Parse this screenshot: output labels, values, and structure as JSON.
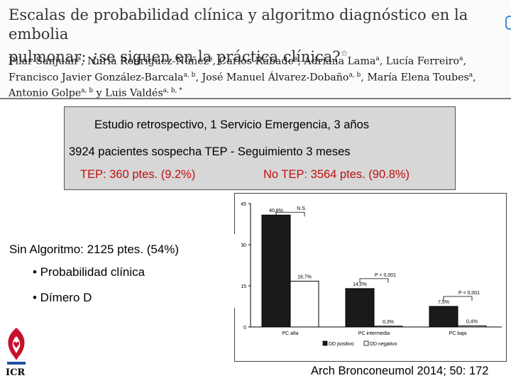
{
  "header": {
    "title_line1": "Escalas de probabilidad clínica y algoritmo diagnóstico en la embolia",
    "title_line2": "pulmonar: ¿se siguen en la práctica clínica?",
    "title_mark": "☆",
    "authors": [
      [
        {
          "name": "Pilar Sanjuán",
          "sup": "a"
        },
        {
          "name": ", Nuria Rodríguez-Núñez",
          "sup": "a"
        },
        {
          "name": ", Carlos Rábade",
          "sup": "a"
        },
        {
          "name": ", Adriana Lama",
          "sup": "a"
        },
        {
          "name": ", Lucía Ferreiro",
          "sup": "a"
        },
        {
          "name": ",",
          "sup": ""
        }
      ],
      [
        {
          "name": "Francisco Javier González-Barcala",
          "sup": "a, b"
        },
        {
          "name": ", José Manuel Álvarez-Dobaño",
          "sup": "a, b"
        },
        {
          "name": ", María Elena Toubes",
          "sup": "a"
        },
        {
          "name": ",",
          "sup": ""
        }
      ],
      [
        {
          "name": "Antonio Golpe",
          "sup": "a, b"
        },
        {
          "name": " y Luis Valdés",
          "sup": "a, b, *"
        }
      ]
    ]
  },
  "summary": {
    "line1": "Estudio retrospectivo, 1 Servicio Emergencia, 3 años",
    "line2": "3924 pacientes sospecha TEP - Seguimiento 3 meses",
    "tep": "TEP:  360 ptes. (9.2%)",
    "no_tep": "No TEP: 3564 ptes. (90.8%)"
  },
  "algorithm": {
    "main": "Sin Algoritmo: 2125 ptes. (54%)",
    "bullets": [
      "• Probabilidad clínica",
      "• Dímero D"
    ]
  },
  "logo": {
    "text": "ICR"
  },
  "citation": "Arch Bronconeumol 2014; 50: 172",
  "colors": {
    "accent_red": "#c01010",
    "bar_dark": "#1a1a1a",
    "bar_light": "#ffffff",
    "panel": "#d7d7d7"
  },
  "chart_data": {
    "type": "bar",
    "categories": [
      "PC alta",
      "PC intermedia",
      "PC baja"
    ],
    "series": [
      {
        "name": "DD positivo",
        "values": [
          40.8,
          14.0,
          7.5
        ],
        "labels": [
          "40,8%",
          "14,0%",
          "7,5%"
        ],
        "color": "#1a1a1a"
      },
      {
        "name": "DD negativo",
        "values": [
          16.7,
          0.3,
          0.4
        ],
        "labels": [
          "16,7%",
          "0,3%",
          "0,4%"
        ],
        "color": "#ffffff"
      }
    ],
    "yticks": [
      0,
      15,
      30,
      45
    ],
    "ylim": [
      0,
      45
    ],
    "annotations": [
      {
        "text": "N.S.",
        "category": 0
      },
      {
        "text": "P < 0,001",
        "category": 1
      },
      {
        "text": "P < 0,001",
        "category": 2
      }
    ],
    "legend_position": "bottom"
  }
}
